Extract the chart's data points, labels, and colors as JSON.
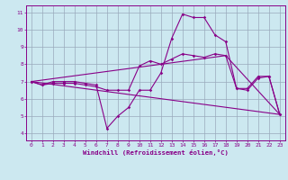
{
  "xlabel": "Windchill (Refroidissement éolien,°C)",
  "bg_color": "#cce8f0",
  "line_color": "#880088",
  "grid_color": "#99aabb",
  "xlim": [
    -0.5,
    23.5
  ],
  "ylim": [
    3.6,
    11.4
  ],
  "xticks": [
    0,
    1,
    2,
    3,
    4,
    5,
    6,
    7,
    8,
    9,
    10,
    11,
    12,
    13,
    14,
    15,
    16,
    17,
    18,
    19,
    20,
    21,
    22,
    23
  ],
  "yticks": [
    4,
    5,
    6,
    7,
    8,
    9,
    10,
    11
  ],
  "line1_x": [
    0,
    1,
    2,
    3,
    4,
    5,
    6,
    7,
    8,
    9,
    10,
    11,
    12,
    13,
    14,
    15,
    16,
    17,
    18,
    19,
    20,
    21,
    22,
    23
  ],
  "line1_y": [
    7.0,
    6.8,
    7.0,
    7.0,
    7.0,
    6.9,
    6.8,
    4.3,
    5.0,
    5.5,
    6.5,
    6.5,
    7.5,
    9.5,
    10.9,
    10.7,
    10.7,
    9.7,
    9.3,
    6.6,
    6.6,
    7.3,
    7.3,
    5.1
  ],
  "line2_x": [
    0,
    1,
    2,
    3,
    4,
    5,
    6,
    7,
    8,
    9,
    10,
    11,
    12,
    13,
    14,
    15,
    16,
    17,
    18,
    19,
    20,
    21,
    22,
    23
  ],
  "line2_y": [
    7.0,
    6.8,
    6.9,
    6.9,
    6.9,
    6.8,
    6.7,
    6.5,
    6.5,
    6.5,
    7.9,
    8.2,
    8.0,
    8.3,
    8.6,
    8.5,
    8.4,
    8.6,
    8.5,
    6.6,
    6.5,
    7.2,
    7.3,
    5.1
  ],
  "line3_x": [
    0,
    23
  ],
  "line3_y": [
    7.0,
    5.1
  ],
  "line4_x": [
    0,
    18,
    23
  ],
  "line4_y": [
    7.0,
    8.5,
    5.1
  ]
}
